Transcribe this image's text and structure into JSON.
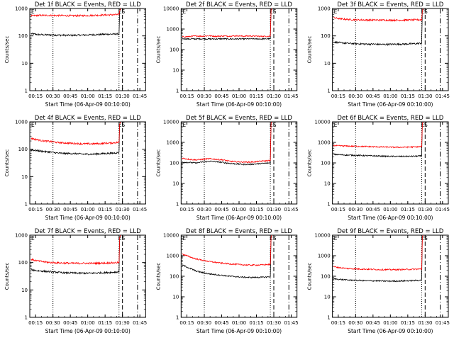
{
  "figure": {
    "colors": {
      "events": "#000000",
      "lld": "#ff0000",
      "axes": "#000000",
      "background": "#ffffff"
    },
    "chart_data": [
      {
        "type": "line",
        "title": "Det 1f BLACK = Events, RED = LLD",
        "xlabel": "Start Time (06-Apr-09 00:10:00)",
        "ylabel": "Counts/sec",
        "xlim": [
          "00:10",
          "01:50"
        ],
        "ylim": [
          1,
          1000
        ],
        "yscale": "log",
        "xticks": [
          "00:15",
          "00:30",
          "00:45",
          "01:00",
          "01:15",
          "01:30",
          "01:45"
        ],
        "yticks": [
          "1",
          "10",
          "100",
          "1000"
        ],
        "markers": {
          "left": "E",
          "right": "ES"
        },
        "vlines": [
          {
            "x": "00:30",
            "style": "dotted"
          },
          {
            "x": "01:27",
            "style": "dotted"
          },
          {
            "x": "01:30",
            "style": "dashed"
          },
          {
            "x": "01:43",
            "style": "dashdot"
          }
        ],
        "series": [
          {
            "name": "Events",
            "values": [
              120,
              112,
              110,
              108,
              107,
              106,
              105,
              106,
              108,
              110,
              112,
              115,
              116,
              118
            ]
          },
          {
            "name": "LLD",
            "values": [
              540,
              560,
              560,
              560,
              555,
              550,
              545,
              545,
              550,
              560,
              570,
              580,
              590,
              600
            ]
          }
        ],
        "data_x_range": [
          "00:11",
          "01:27"
        ],
        "rise_to": 1000
      },
      {
        "type": "line",
        "title": "Det 2f BLACK = Events, RED = LLD",
        "xlabel": "Start Time (06-Apr-09 00:10:00)",
        "ylabel": "Counts/sec",
        "xlim": [
          "00:10",
          "01:50"
        ],
        "ylim": [
          1,
          10000
        ],
        "yscale": "log",
        "xticks": [
          "00:15",
          "00:30",
          "00:45",
          "01:00",
          "01:15",
          "01:30",
          "01:45"
        ],
        "yticks": [
          "1",
          "10",
          "100",
          "1000",
          "10000"
        ],
        "markers": {
          "left": "E",
          "right": "ES"
        },
        "vlines": [
          {
            "x": "00:30",
            "style": "dotted"
          },
          {
            "x": "01:27",
            "style": "dotted"
          },
          {
            "x": "01:30",
            "style": "dashed"
          },
          {
            "x": "01:43",
            "style": "dashdot"
          }
        ],
        "series": [
          {
            "name": "Events",
            "values": [
              340,
              330,
              330,
              335,
              330,
              330,
              335,
              330,
              330,
              330,
              335,
              330,
              330,
              340
            ]
          },
          {
            "name": "LLD",
            "values": [
              420,
              430,
              460,
              450,
              470,
              440,
              460,
              450,
              470,
              450,
              460,
              450,
              440,
              450
            ]
          }
        ],
        "data_x_range": [
          "00:11",
          "01:27"
        ],
        "rise_to": 10000
      },
      {
        "type": "line",
        "title": "Det 3f BLACK = Events, RED = LLD",
        "xlabel": "Start Time (06-Apr-09 00:10:00)",
        "ylabel": "Counts/sec",
        "xlim": [
          "00:10",
          "01:50"
        ],
        "ylim": [
          1,
          1000
        ],
        "yscale": "log",
        "xticks": [
          "00:15",
          "00:30",
          "00:45",
          "01:00",
          "01:15",
          "01:30",
          "01:45"
        ],
        "yticks": [
          "1",
          "10",
          "100",
          "1000"
        ],
        "markers": {
          "left": "E",
          "right": "ES"
        },
        "vlines": [
          {
            "x": "00:30",
            "style": "dotted"
          },
          {
            "x": "01:27",
            "style": "dotted"
          },
          {
            "x": "01:30",
            "style": "dashed"
          },
          {
            "x": "01:43",
            "style": "dashdot"
          }
        ],
        "series": [
          {
            "name": "Events",
            "values": [
              60,
              56,
              54,
              52,
              51,
              50,
              50,
              49,
              49,
              50,
              50,
              51,
              52,
              54
            ]
          },
          {
            "name": "LLD",
            "values": [
              460,
              420,
              400,
              390,
              385,
              380,
              380,
              378,
              375,
              375,
              378,
              380,
              385,
              390
            ]
          }
        ],
        "data_x_range": [
          "00:11",
          "01:27"
        ],
        "rise_to": 1000
      },
      {
        "type": "line",
        "title": "Det 4f BLACK = Events, RED = LLD",
        "xlabel": "Start Time (06-Apr-09 00:10:00)",
        "ylabel": "Counts/sec",
        "xlim": [
          "00:10",
          "01:50"
        ],
        "ylim": [
          1,
          1000
        ],
        "yscale": "log",
        "xticks": [
          "00:15",
          "00:30",
          "00:45",
          "01:00",
          "01:15",
          "01:30",
          "01:45"
        ],
        "yticks": [
          "1",
          "10",
          "100",
          "1000"
        ],
        "markers": {
          "left": "E",
          "right": "ES"
        },
        "vlines": [
          {
            "x": "00:30",
            "style": "dotted"
          },
          {
            "x": "01:27",
            "style": "dotted"
          },
          {
            "x": "01:30",
            "style": "dashed"
          },
          {
            "x": "01:43",
            "style": "dashdot"
          }
        ],
        "series": [
          {
            "name": "Events",
            "values": [
              95,
              88,
              82,
              78,
              72,
              70,
              70,
              68,
              66,
              66,
              68,
              70,
              72,
              75
            ]
          },
          {
            "name": "LLD",
            "values": [
              250,
              220,
              200,
              190,
              175,
              170,
              165,
              160,
              158,
              158,
              160,
              165,
              170,
              180
            ]
          }
        ],
        "data_x_range": [
          "00:11",
          "01:27"
        ],
        "rise_to": 1000
      },
      {
        "type": "line",
        "title": "Det 5f BLACK = Events, RED = LLD",
        "xlabel": "Start Time (06-Apr-09 00:10:00)",
        "ylabel": "Counts/sec",
        "xlim": [
          "00:10",
          "01:50"
        ],
        "ylim": [
          1,
          10000
        ],
        "yscale": "log",
        "xticks": [
          "00:15",
          "00:30",
          "00:45",
          "01:00",
          "01:15",
          "01:30",
          "01:45"
        ],
        "yticks": [
          "1",
          "10",
          "100",
          "1000",
          "10000"
        ],
        "markers": {
          "left": "E",
          "right": "ES"
        },
        "vlines": [
          {
            "x": "00:30",
            "style": "dotted"
          },
          {
            "x": "01:27",
            "style": "dotted"
          },
          {
            "x": "01:30",
            "style": "dashed"
          },
          {
            "x": "01:43",
            "style": "dashdot"
          }
        ],
        "series": [
          {
            "name": "Events",
            "values": [
              110,
              105,
              100,
              110,
              120,
              115,
              105,
              95,
              90,
              85,
              85,
              90,
              95,
              100
            ]
          },
          {
            "name": "LLD",
            "values": [
              170,
              150,
              140,
              150,
              160,
              150,
              140,
              120,
              115,
              110,
              110,
              115,
              125,
              130
            ]
          }
        ],
        "data_x_range": [
          "00:11",
          "01:27"
        ],
        "rise_to": 10000
      },
      {
        "type": "line",
        "title": "Det 6f BLACK = Events, RED = LLD",
        "xlabel": "Start Time (06-Apr-09 00:10:00)",
        "ylabel": "Counts/sec",
        "xlim": [
          "00:10",
          "01:50"
        ],
        "ylim": [
          1,
          10000
        ],
        "yscale": "log",
        "xticks": [
          "00:15",
          "00:30",
          "00:45",
          "01:00",
          "01:15",
          "01:30",
          "01:45"
        ],
        "yticks": [
          "1",
          "10",
          "100",
          "1000",
          "10000"
        ],
        "markers": {
          "left": "E",
          "right": "ES"
        },
        "vlines": [
          {
            "x": "00:30",
            "style": "dotted"
          },
          {
            "x": "01:27",
            "style": "dotted"
          },
          {
            "x": "01:30",
            "style": "dashed"
          },
          {
            "x": "01:43",
            "style": "dashdot"
          }
        ],
        "series": [
          {
            "name": "Events",
            "values": [
              260,
              250,
              240,
              235,
              230,
              225,
              220,
              215,
              210,
              208,
              208,
              210,
              212,
              220
            ]
          },
          {
            "name": "LLD",
            "values": [
              700,
              680,
              660,
              650,
              640,
              625,
              610,
              600,
              590,
              580,
              580,
              590,
              600,
              620
            ]
          }
        ],
        "data_x_range": [
          "00:11",
          "01:27"
        ],
        "rise_to": 10000
      },
      {
        "type": "line",
        "title": "Det 7f BLACK = Events, RED = LLD",
        "xlabel": "Start Time (06-Apr-09 00:10:00)",
        "ylabel": "Counts/sec",
        "xlim": [
          "00:10",
          "01:50"
        ],
        "ylim": [
          1,
          1000
        ],
        "yscale": "log",
        "xticks": [
          "00:15",
          "00:30",
          "00:45",
          "01:00",
          "01:15",
          "01:30",
          "01:45"
        ],
        "yticks": [
          "1",
          "10",
          "100",
          "1000"
        ],
        "markers": {
          "left": "E",
          "right": "ES"
        },
        "vlines": [
          {
            "x": "00:30",
            "style": "dotted"
          },
          {
            "x": "01:27",
            "style": "dotted"
          },
          {
            "x": "01:30",
            "style": "dashed"
          },
          {
            "x": "01:43",
            "style": "dashdot"
          }
        ],
        "series": [
          {
            "name": "Events",
            "values": [
              55,
              50,
              48,
              46,
              44,
              42,
              42,
              41,
              41,
              41,
              42,
              43,
              44,
              46
            ]
          },
          {
            "name": "LLD",
            "values": [
              130,
              115,
              105,
              100,
              98,
              96,
              95,
              94,
              94,
              94,
              95,
              96,
              98,
              100
            ]
          }
        ],
        "data_x_range": [
          "00:11",
          "01:27"
        ],
        "rise_to": 1000
      },
      {
        "type": "line",
        "title": "Det 8f BLACK = Events, RED = LLD",
        "xlabel": "Start Time (06-Apr-09 00:10:00)",
        "ylabel": "Counts/sec",
        "xlim": [
          "00:10",
          "01:50"
        ],
        "ylim": [
          1,
          10000
        ],
        "yscale": "log",
        "xticks": [
          "00:15",
          "00:30",
          "00:45",
          "01:00",
          "01:15",
          "01:30",
          "01:45"
        ],
        "yticks": [
          "1",
          "10",
          "100",
          "1000",
          "10000"
        ],
        "markers": {
          "left": "E",
          "right": "ES"
        },
        "vlines": [
          {
            "x": "00:30",
            "style": "dotted"
          },
          {
            "x": "01:27",
            "style": "dotted"
          },
          {
            "x": "01:30",
            "style": "dashed"
          },
          {
            "x": "01:43",
            "style": "dashdot"
          }
        ],
        "series": [
          {
            "name": "Events",
            "values": [
              350,
              250,
              180,
              150,
              130,
              120,
              110,
              100,
              95,
              90,
              88,
              88,
              90,
              95
            ]
          },
          {
            "name": "LLD",
            "values": [
              1200,
              900,
              700,
              600,
              520,
              470,
              430,
              400,
              380,
              360,
              350,
              350,
              360,
              380
            ]
          }
        ],
        "data_x_range": [
          "00:11",
          "01:27"
        ],
        "rise_to": 10000
      },
      {
        "type": "line",
        "title": "Det 9f BLACK = Events, RED = LLD",
        "xlabel": "Start Time (06-Apr-09 00:10:00)",
        "ylabel": "Counts/sec",
        "xlim": [
          "00:10",
          "01:50"
        ],
        "ylim": [
          1,
          10000
        ],
        "yscale": "log",
        "xticks": [
          "00:15",
          "00:30",
          "00:45",
          "01:00",
          "01:15",
          "01:30",
          "01:45"
        ],
        "yticks": [
          "1",
          "10",
          "100",
          "1000",
          "10000"
        ],
        "markers": {
          "left": "E",
          "right": "ES"
        },
        "vlines": [
          {
            "x": "00:30",
            "style": "dotted"
          },
          {
            "x": "01:27",
            "style": "dotted"
          },
          {
            "x": "01:30",
            "style": "dashed"
          },
          {
            "x": "01:43",
            "style": "dashdot"
          }
        ],
        "series": [
          {
            "name": "Events",
            "values": [
              75,
              70,
              66,
              64,
              62,
              60,
              60,
              59,
              58,
              58,
              59,
              60,
              62,
              64
            ]
          },
          {
            "name": "LLD",
            "values": [
              290,
              260,
              240,
              230,
              225,
              220,
              215,
              210,
              210,
              210,
              212,
              215,
              220,
              225
            ]
          }
        ],
        "data_x_range": [
          "00:11",
          "01:27"
        ],
        "rise_to": 10000
      }
    ]
  }
}
